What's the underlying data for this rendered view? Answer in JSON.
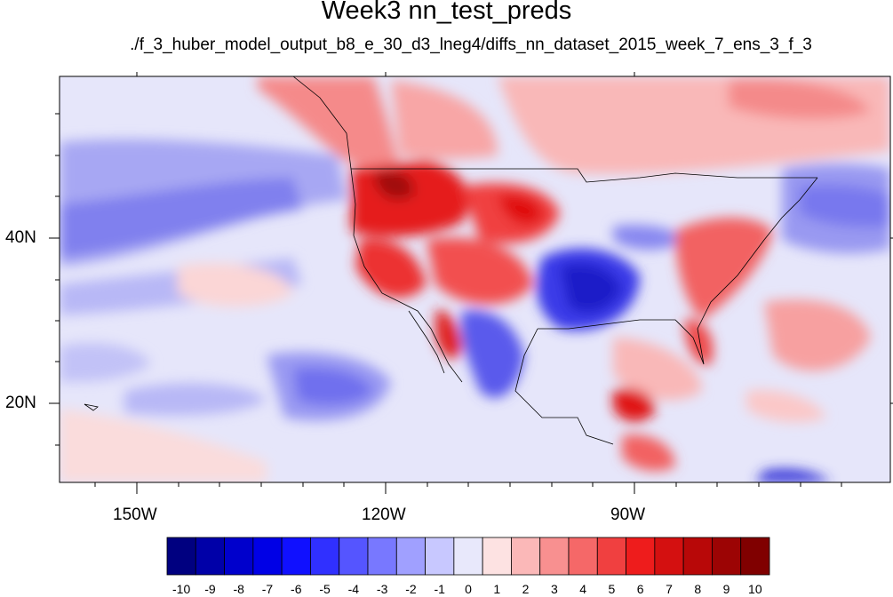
{
  "title": "Week3 nn_test_preds",
  "subtitle": "./f_3_huber_model_output_b8_e_30_d3_lneg4/diffs_nn_dataset_2015_week_7_ens_3_f_3",
  "axes": {
    "lat_labels": [
      "40N",
      "20N"
    ],
    "lon_labels": [
      "150W",
      "120W",
      "90W"
    ]
  },
  "colorbar": {
    "labels": [
      "-10",
      "-9",
      "-8",
      "-7",
      "-6",
      "-5",
      "-4",
      "-3",
      "-2",
      "-1",
      "0",
      "1",
      "2",
      "3",
      "4",
      "5",
      "6",
      "7",
      "8",
      "9",
      "10"
    ],
    "colors": [
      "#000080",
      "#0000a8",
      "#0000cc",
      "#0000e6",
      "#1010ff",
      "#3030ff",
      "#5555ff",
      "#7878ff",
      "#a0a0ff",
      "#c8c8ff",
      "#e8e8fb",
      "#fde2e2",
      "#fbb8b8",
      "#f89090",
      "#f56868",
      "#f04040",
      "#ee1c1c",
      "#d41010",
      "#b80808",
      "#9c0404",
      "#800000"
    ]
  }
}
